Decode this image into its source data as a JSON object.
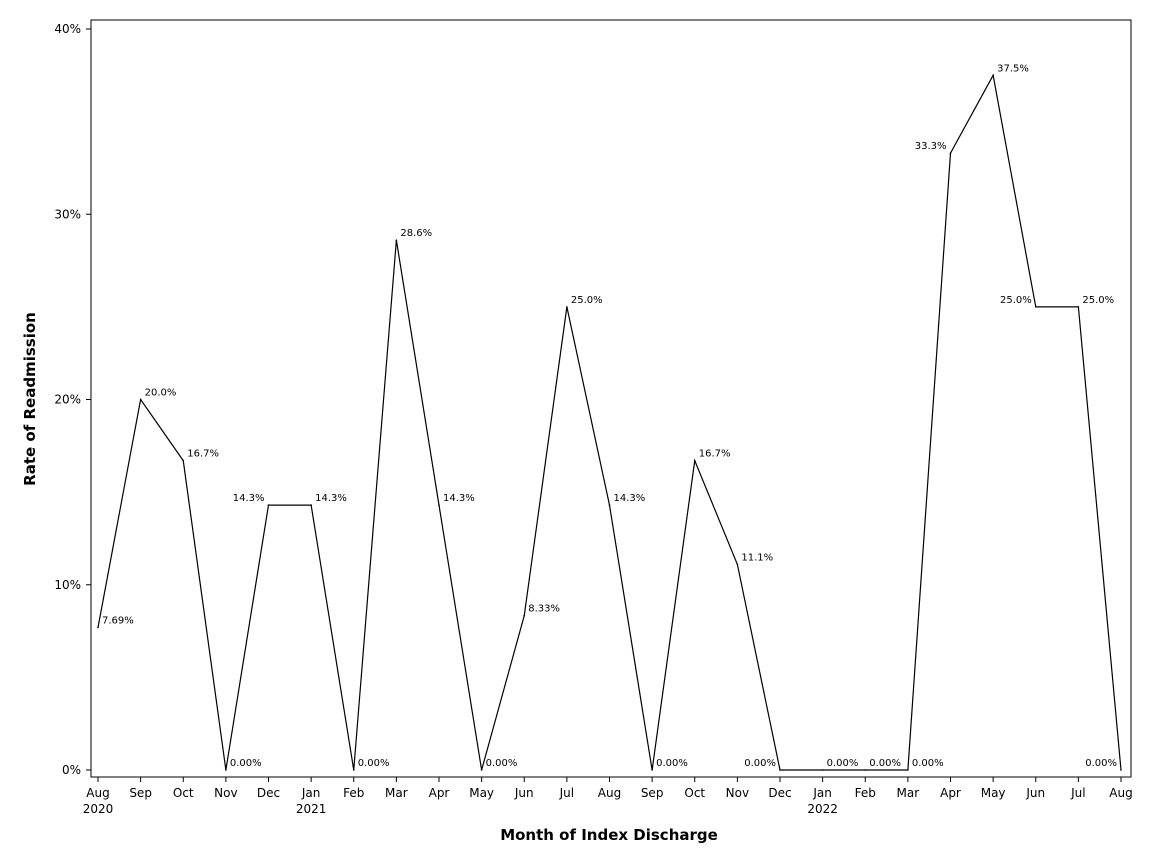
{
  "chart_data": {
    "type": "line",
    "title": "",
    "xlabel": "Month of Index Discharge",
    "ylabel": "Rate of Readmission",
    "ylim": [
      0,
      40
    ],
    "yticks": [
      "0%",
      "10%",
      "20%",
      "30%",
      "40%"
    ],
    "grid": false,
    "categories": [
      "Aug",
      "Sep",
      "Oct",
      "Nov",
      "Dec",
      "Jan",
      "Feb",
      "Mar",
      "Apr",
      "May",
      "Jun",
      "Jul",
      "Aug",
      "Sep",
      "Oct",
      "Nov",
      "Dec",
      "Jan",
      "Feb",
      "Mar",
      "Apr",
      "May",
      "Jun",
      "Jul",
      "Aug"
    ],
    "year_labels": [
      {
        "category_index": 0,
        "label": "2020"
      },
      {
        "category_index": 5,
        "label": "2021"
      },
      {
        "category_index": 17,
        "label": "2022"
      }
    ],
    "series": [
      {
        "values": [
          7.69,
          20.0,
          16.7,
          0.0,
          14.3,
          14.3,
          0.0,
          28.6,
          14.3,
          0.0,
          8.33,
          25.0,
          14.3,
          0.0,
          16.7,
          11.1,
          0.0,
          0.0,
          0.0,
          0.0,
          33.3,
          37.5,
          25.0,
          25.0,
          0.0
        ],
        "labels": [
          "7.69%",
          "20.0%",
          "16.7%",
          "0.00%",
          "14.3%",
          "14.3%",
          "0.00%",
          "28.6%",
          "14.3%",
          "0.00%",
          "8.33%",
          "25.0%",
          "14.3%",
          "0.00%",
          "16.7%",
          "11.1%",
          "0.00%",
          "0.00%",
          "0.00%",
          "0.00%",
          "33.3%",
          "37.5%",
          "25.0%",
          "25.0%",
          "0.00%"
        ],
        "label_sides": [
          "right",
          "right",
          "right",
          "right",
          "left",
          "right",
          "right",
          "right",
          "right",
          "right",
          "right",
          "right",
          "right",
          "right",
          "right",
          "right",
          "left",
          "right",
          "right",
          "right",
          "left",
          "right",
          "left",
          "right",
          "left"
        ],
        "color": "#000000"
      }
    ]
  }
}
